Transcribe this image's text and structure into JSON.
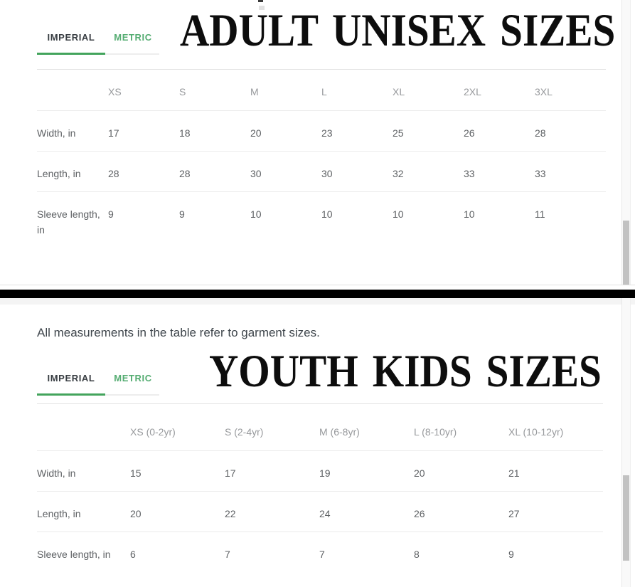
{
  "note": "All measurements in the table refer to garment sizes.",
  "colors": {
    "accent_green": "#43a45c",
    "tab_metric_text": "#54ac71",
    "tab_imperial_text": "#383d42",
    "divider": "#000000",
    "table_header_text": "#97999c",
    "table_body_text": "#5e6164"
  },
  "sections": [
    {
      "id": "adult",
      "title": "ADULT UNISEX SIZES",
      "tabs": [
        {
          "label": "IMPERIAL",
          "active": true
        },
        {
          "label": "METRIC",
          "active": false
        }
      ],
      "table": {
        "columns": [
          "",
          "XS",
          "S",
          "M",
          "L",
          "XL",
          "2XL",
          "3XL"
        ],
        "rows": [
          {
            "label": "Width, in",
            "values": [
              "17",
              "18",
              "20",
              "23",
              "25",
              "26",
              "28"
            ]
          },
          {
            "label": "Length, in",
            "values": [
              "28",
              "28",
              "30",
              "30",
              "32",
              "33",
              "33"
            ]
          },
          {
            "label": "Sleeve length, in",
            "values": [
              "9",
              "9",
              "10",
              "10",
              "10",
              "10",
              "11"
            ]
          }
        ]
      }
    },
    {
      "id": "youth",
      "title": "YOUTH KIDS SIZES",
      "tabs": [
        {
          "label": "IMPERIAL",
          "active": true
        },
        {
          "label": "METRIC",
          "active": false
        }
      ],
      "table": {
        "columns": [
          "",
          "XS (0-2yr)",
          "S (2-4yr)",
          "M (6-8yr)",
          "L (8-10yr)",
          "XL (10-12yr)"
        ],
        "rows": [
          {
            "label": "Width, in",
            "values": [
              "15",
              "17",
              "19",
              "20",
              "21"
            ]
          },
          {
            "label": "Length, in",
            "values": [
              "20",
              "22",
              "24",
              "26",
              "27"
            ]
          },
          {
            "label": "Sleeve length, in",
            "values": [
              "6",
              "7",
              "7",
              "8",
              "9"
            ]
          }
        ]
      }
    }
  ]
}
